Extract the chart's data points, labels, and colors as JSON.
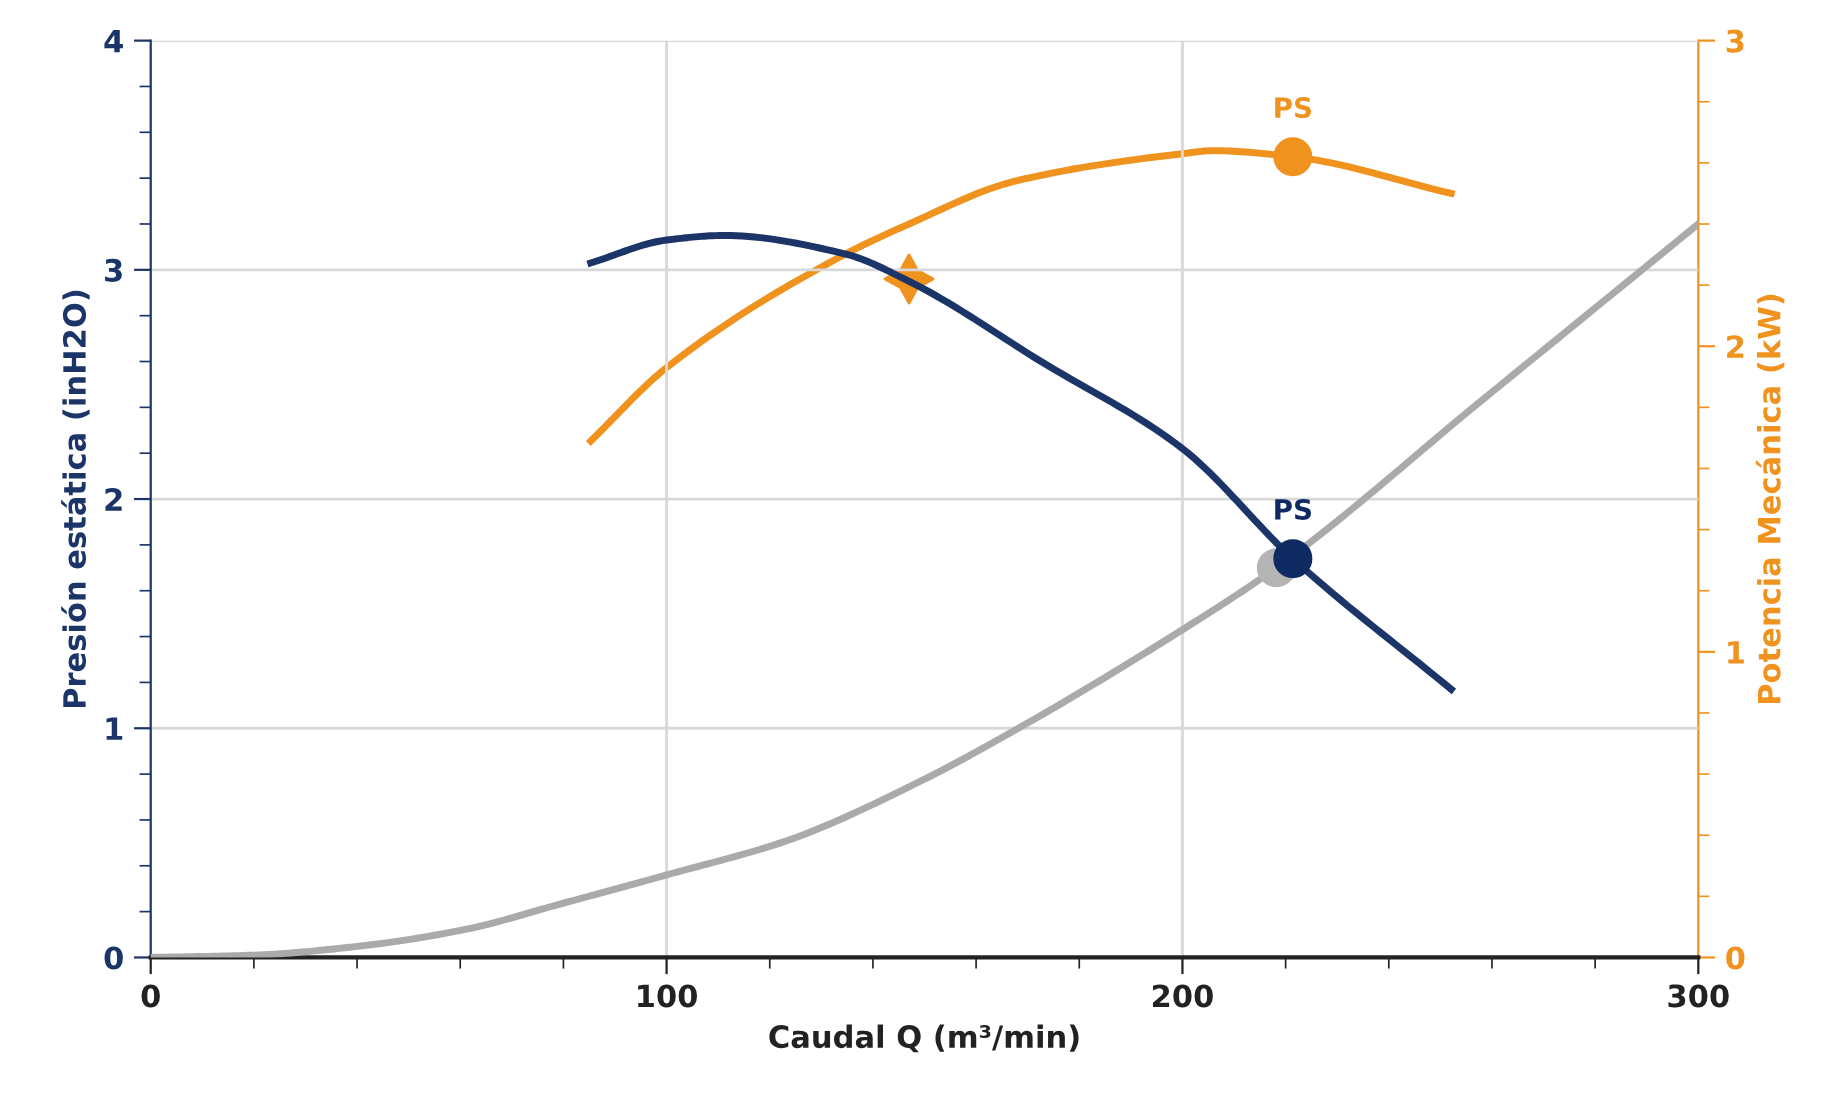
{
  "chart_data": {
    "type": "line",
    "xlabel": "Caudal Q (m³/min)",
    "ylabel": "Presión estática (inH2O)",
    "y2label": "Potencia Mecánica (kW)",
    "xlim": [
      0,
      300
    ],
    "xticks": [
      0,
      {
        "value": 20,
        "label": null
      },
      {
        "value": 40,
        "label": null
      },
      {
        "value": 60,
        "label": null
      },
      {
        "value": 80,
        "label": null
      },
      100,
      {
        "value": 120,
        "label": null
      },
      {
        "value": 140,
        "label": null
      },
      {
        "value": 160,
        "label": null
      },
      {
        "value": 180,
        "label": null
      },
      200,
      {
        "value": 220,
        "label": null
      },
      {
        "value": 240,
        "label": null
      },
      {
        "value": 260,
        "label": null
      },
      {
        "value": 280,
        "label": null
      },
      300
    ],
    "ylim": [
      0,
      4
    ],
    "yticks": [
      0,
      {
        "value": 0.2,
        "label": null
      },
      {
        "value": 0.4,
        "label": null
      },
      {
        "value": 0.6,
        "label": null
      },
      {
        "value": 0.8,
        "label": null
      },
      1,
      {
        "value": 1.2,
        "label": null
      },
      {
        "value": 1.4,
        "label": null
      },
      {
        "value": 1.6,
        "label": null
      },
      {
        "value": 1.8,
        "label": null
      },
      2,
      {
        "value": 2.2,
        "label": null
      },
      {
        "value": 2.4,
        "label": null
      },
      {
        "value": 2.6,
        "label": null
      },
      {
        "value": 2.8,
        "label": null
      },
      3,
      {
        "value": 3.2,
        "label": null
      },
      {
        "value": 3.4,
        "label": null
      },
      {
        "value": 3.6,
        "label": null
      },
      {
        "value": 3.8,
        "label": null
      },
      4
    ],
    "y2lim": [
      0,
      3
    ],
    "y2ticks": [
      0,
      {
        "value": 0.2,
        "label": null
      },
      {
        "value": 0.4,
        "label": null
      },
      {
        "value": 0.6,
        "label": null
      },
      {
        "value": 0.8,
        "label": null
      },
      1,
      {
        "value": 1.2,
        "label": null
      },
      {
        "value": 1.4,
        "label": null
      },
      {
        "value": 1.6,
        "label": null
      },
      {
        "value": 1.8,
        "label": null
      },
      2,
      {
        "value": 2.2,
        "label": null
      },
      {
        "value": 2.4,
        "label": null
      },
      {
        "value": 2.6,
        "label": null
      },
      {
        "value": 2.8,
        "label": null
      },
      3
    ],
    "grid": true,
    "legend": false,
    "series": [
      {
        "axis": "y",
        "color": "#aaaaaa",
        "x": [
          0,
          20,
          40.7,
          60.5,
          80.5,
          100,
          123.4,
          149.3,
          167.4,
          200,
          218.2,
          258,
          300
        ],
        "values": [
          0,
          0.01,
          0.05,
          0.12,
          0.24,
          0.36,
          0.51,
          0.77,
          0.99,
          1.43,
          1.7,
          2.43,
          3.2
        ]
      },
      {
        "axis": "y",
        "color": "#1b3568",
        "x": [
          85.3,
          100,
          111.2,
          134.5,
          147,
          172.6,
          200,
          221.4,
          252.1
        ],
        "values": [
          3.03,
          3.13,
          3.15,
          3.07,
          2.95,
          2.6,
          2.22,
          1.74,
          1.17
        ]
      },
      {
        "axis": "y2",
        "color": "#f0921e",
        "x": [
          85.3,
          100,
          134.5,
          147,
          167.5,
          200,
          206,
          221.4,
          252.1
        ],
        "values": [
          1.69,
          1.93,
          2.3,
          2.4,
          2.54,
          2.63,
          2.64,
          2.62,
          2.5
        ]
      },
      {
        "type": "scatter",
        "axis": "y",
        "marker": "circle",
        "color": "#b4b4b4",
        "x": [
          218.2
        ],
        "values": [
          1.7
        ]
      },
      {
        "type": "scatter",
        "axis": "y",
        "marker": "circle",
        "color": "#0f2a62",
        "x": [
          221.4
        ],
        "values": [
          1.74
        ],
        "value_labels": [
          "PS"
        ]
      },
      {
        "type": "scatter",
        "axis": "y2",
        "marker": "circle",
        "color": "#f0921e",
        "x": [
          221.4
        ],
        "values": [
          2.62
        ],
        "value_labels": [
          "PS"
        ]
      },
      {
        "type": "scatter",
        "axis": "y2",
        "marker": "star",
        "color": "#f0921e",
        "x": [
          147
        ],
        "values": [
          2.22
        ]
      }
    ]
  }
}
